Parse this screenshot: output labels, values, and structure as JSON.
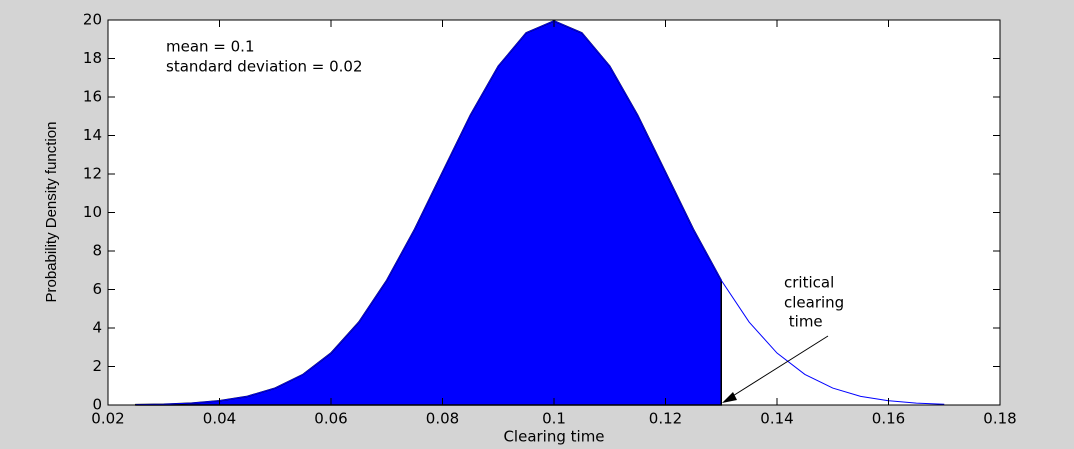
{
  "chart_data": {
    "type": "area",
    "xlabel": "Clearing time",
    "ylabel": "Probability Density function",
    "annotations": [
      "mean = 0.1",
      "standard deviation = 0.02"
    ],
    "arrow_label": [
      "critical",
      "clearing",
      " time"
    ],
    "x": [
      0.025,
      0.03,
      0.035,
      0.04,
      0.045,
      0.05,
      0.055,
      0.06,
      0.065,
      0.07,
      0.075,
      0.08,
      0.085,
      0.09,
      0.095,
      0.1,
      0.105,
      0.11,
      0.115,
      0.12,
      0.125,
      0.13,
      0.135,
      0.14,
      0.145,
      0.15,
      0.155,
      0.16,
      0.165,
      0.17
    ],
    "series": [
      {
        "color": "#0000ff",
        "values": [
          0.02,
          0.04,
          0.1,
          0.22,
          0.45,
          0.88,
          1.59,
          2.7,
          4.31,
          6.48,
          9.13,
          12.1,
          15.06,
          17.6,
          19.33,
          19.95,
          19.33,
          17.6,
          15.06,
          12.1,
          9.13,
          6.48,
          4.31,
          2.7,
          1.59,
          0.88,
          0.45,
          0.22,
          0.1,
          0.04
        ]
      }
    ],
    "fill_until": 0.13,
    "fill_color": "#0000ff",
    "xlim": [
      0.02,
      0.18
    ],
    "xticks": [
      0.02,
      0.04,
      0.06,
      0.08,
      0.1,
      0.12,
      0.14,
      0.16,
      0.18
    ],
    "ylim": [
      0,
      20
    ],
    "yticks": [
      0,
      2,
      4,
      6,
      8,
      10,
      12,
      14,
      16,
      18,
      20
    ]
  }
}
